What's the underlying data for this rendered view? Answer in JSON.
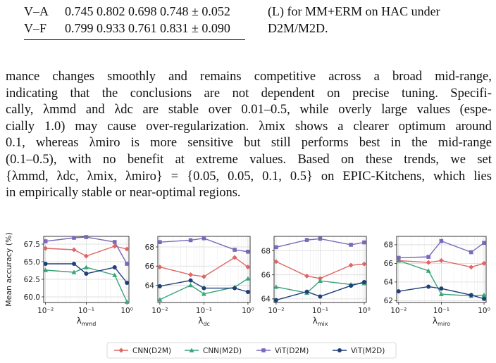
{
  "table": {
    "rows": [
      {
        "label": "V–A",
        "values": "0.745 0.802 0.698 0.748 ± 0.052"
      },
      {
        "label": "V–F",
        "values": "0.799 0.933 0.761 0.831 ± 0.090"
      }
    ]
  },
  "caption_fragment": {
    "line1": "(L) for MM+ERM on HAC under",
    "line2": "D2M/M2D."
  },
  "paragraph": [
    "mance changes smoothly and remains competitive across a broad mid-range,",
    "indicating that the conclusions are not dependent on precise tuning. Specifi-",
    "cally, λmmd and λdc are stable over 0.01–0.5, while overly large values (espe-",
    "cially 1.0) may cause over-regularization. λmix shows a clearer optimum around",
    "0.1, whereas λmiro is more sensitive but still performs best in the mid-range",
    "(0.1–0.5), with no benefit at extreme values. Based on these trends, we set",
    "{λmmd, λdc, λmix, λmiro} = {0.05, 0.05, 0.1, 0.5} on EPIC-Kitchens, which lies",
    "in empirically stable or near-optimal regions."
  ],
  "colors": {
    "cnn_d2m": "#e06666",
    "cnn_m2d": "#3aa37a",
    "vit_d2m": "#7b68b8",
    "vit_m2d": "#1f3f7a"
  },
  "chart_data": [
    {
      "type": "line",
      "xlabel": "λmmd",
      "ylabel": "Mean accuracy (%)",
      "xscale": "log",
      "x": [
        0.01,
        0.05,
        0.1,
        0.5,
        1.0
      ],
      "ylim": [
        59.2,
        68.6
      ],
      "yticks": [
        60.0,
        62.5,
        65.0,
        67.5
      ],
      "yticklabels": [
        "60.0",
        "62.5",
        "65.0",
        "67.5"
      ],
      "xticklabels": [
        "10⁻²",
        "10⁻¹",
        "10⁰"
      ],
      "series": [
        {
          "name": "CNN(D2M)",
          "values": [
            66.9,
            66.7,
            65.8,
            67.2,
            66.8
          ]
        },
        {
          "name": "CNN(M2D)",
          "values": [
            63.8,
            63.5,
            64.2,
            63.1,
            59.3
          ]
        },
        {
          "name": "ViT(D2M)",
          "values": [
            67.9,
            68.4,
            68.5,
            67.8,
            64.7
          ]
        },
        {
          "name": "ViT(M2D)",
          "values": [
            64.7,
            64.7,
            63.3,
            64.2,
            62.0
          ]
        }
      ]
    },
    {
      "type": "line",
      "xlabel": "λdc",
      "ylabel": "",
      "xscale": "log",
      "x": [
        0.01,
        0.05,
        0.1,
        0.5,
        1.0
      ],
      "ylim": [
        62.2,
        69.1
      ],
      "yticks": [
        64,
        66,
        68
      ],
      "yticklabels": [
        "64",
        "66",
        "68"
      ],
      "xticklabels": [
        "10⁻²",
        "10⁻¹",
        "10⁰"
      ],
      "series": [
        {
          "name": "CNN(D2M)",
          "values": [
            65.9,
            65.1,
            64.9,
            66.9,
            65.9
          ]
        },
        {
          "name": "CNN(M2D)",
          "values": [
            62.5,
            64.0,
            63.1,
            63.8,
            64.7
          ]
        },
        {
          "name": "ViT(D2M)",
          "values": [
            68.5,
            68.7,
            68.9,
            67.7,
            67.5
          ]
        },
        {
          "name": "ViT(M2D)",
          "values": [
            63.9,
            64.5,
            63.7,
            63.7,
            63.3
          ]
        }
      ]
    },
    {
      "type": "line",
      "xlabel": "λmix",
      "ylabel": "",
      "xscale": "log",
      "x": [
        0.01,
        0.05,
        0.1,
        0.5,
        1.0
      ],
      "ylim": [
        63.7,
        69.2
      ],
      "yticks": [
        64,
        66,
        68
      ],
      "yticklabels": [
        "64",
        "66",
        "68"
      ],
      "xticklabels": [
        "10⁻²",
        "10⁻¹",
        "10⁰"
      ],
      "series": [
        {
          "name": "CNN(D2M)",
          "values": [
            67.1,
            65.9,
            65.7,
            66.8,
            66.9
          ]
        },
        {
          "name": "CNN(M2D)",
          "values": [
            65.0,
            64.5,
            65.5,
            65.2,
            65.3
          ]
        },
        {
          "name": "ViT(D2M)",
          "values": [
            68.3,
            68.9,
            69.0,
            68.5,
            68.7
          ]
        },
        {
          "name": "ViT(M2D)",
          "values": [
            63.9,
            64.6,
            64.2,
            65.1,
            65.4
          ]
        }
      ]
    },
    {
      "type": "line",
      "xlabel": "λmiro",
      "ylabel": "",
      "xscale": "log",
      "x": [
        0.01,
        0.05,
        0.1,
        0.5,
        1.0
      ],
      "ylim": [
        61.8,
        68.9
      ],
      "yticks": [
        62,
        64,
        66,
        68
      ],
      "yticklabels": [
        "62",
        "64",
        "66",
        "68"
      ],
      "xticklabels": [
        "10⁻²",
        "10⁻¹",
        "10⁰"
      ],
      "series": [
        {
          "name": "CNN(D2M)",
          "values": [
            66.3,
            66.1,
            66.3,
            65.6,
            66.0
          ]
        },
        {
          "name": "CNN(M2D)",
          "values": [
            66.3,
            65.2,
            62.7,
            62.5,
            62.6
          ]
        },
        {
          "name": "ViT(D2M)",
          "values": [
            66.6,
            66.7,
            68.4,
            67.2,
            68.2
          ]
        },
        {
          "name": "ViT(M2D)",
          "values": [
            63.0,
            63.5,
            63.3,
            62.6,
            62.2
          ]
        }
      ]
    }
  ],
  "legend": [
    "CNN(D2M)",
    "CNN(M2D)",
    "ViT(D2M)",
    "ViT(M2D)"
  ]
}
